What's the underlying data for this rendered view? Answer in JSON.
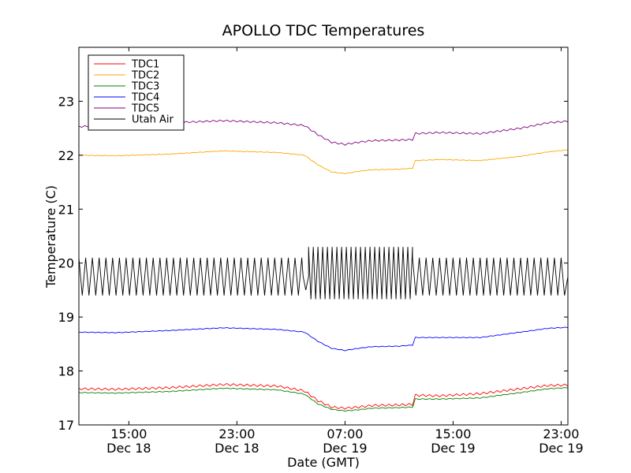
{
  "chart_data": {
    "type": "line",
    "title": "APOLLO TDC Temperatures",
    "xlabel": "Date (GMT)",
    "ylabel": "Temperature (C)",
    "x_unit": "hours since 2023-12-18 00:00 GMT",
    "xlim": [
      11.3,
      47.5
    ],
    "ylim": [
      17,
      24
    ],
    "grid": false,
    "legend_position": "top-left",
    "x_ticks": [
      {
        "value": 15,
        "line1": "15:00",
        "line2": "Dec 18"
      },
      {
        "value": 23,
        "line1": "23:00",
        "line2": "Dec 18"
      },
      {
        "value": 31,
        "line1": "07:00",
        "line2": "Dec 19"
      },
      {
        "value": 39,
        "line1": "15:00",
        "line2": "Dec 19"
      },
      {
        "value": 47,
        "line1": "23:00",
        "line2": "Dec 19"
      }
    ],
    "y_ticks": [
      17,
      18,
      19,
      20,
      21,
      22,
      23
    ],
    "series": [
      {
        "name": "TDC1",
        "color": "#ff0000",
        "ripple": 0.04,
        "x": [
          11.3,
          14,
          18,
          22,
          26,
          28,
          29,
          30,
          31,
          32,
          33,
          35,
          36,
          36.2,
          38,
          41,
          44,
          46,
          47.5
        ],
        "y": [
          17.67,
          17.66,
          17.69,
          17.75,
          17.72,
          17.63,
          17.45,
          17.33,
          17.31,
          17.33,
          17.36,
          17.37,
          17.38,
          17.55,
          17.54,
          17.58,
          17.67,
          17.73,
          17.74
        ]
      },
      {
        "name": "TDC2",
        "color": "#ffa500",
        "ripple": 0.01,
        "x": [
          11.3,
          14,
          18,
          22,
          26,
          28,
          29,
          30,
          31,
          32,
          33,
          35,
          36,
          36.2,
          38,
          41,
          44,
          46,
          47.5
        ],
        "y": [
          22.0,
          21.99,
          22.02,
          22.08,
          22.05,
          22.0,
          21.82,
          21.69,
          21.66,
          21.7,
          21.73,
          21.74,
          21.76,
          21.9,
          21.92,
          21.9,
          21.98,
          22.06,
          22.1
        ]
      },
      {
        "name": "TDC3",
        "color": "#008000",
        "ripple": 0.015,
        "x": [
          11.3,
          14,
          18,
          22,
          26,
          28,
          29,
          30,
          31,
          32,
          33,
          35,
          36,
          36.2,
          38,
          41,
          44,
          46,
          47.5
        ],
        "y": [
          17.6,
          17.59,
          17.62,
          17.68,
          17.65,
          17.57,
          17.39,
          17.29,
          17.26,
          17.28,
          17.31,
          17.32,
          17.33,
          17.48,
          17.48,
          17.5,
          17.6,
          17.67,
          17.69
        ]
      },
      {
        "name": "TDC4",
        "color": "#0000ff",
        "ripple": 0.012,
        "x": [
          11.3,
          14,
          18,
          22,
          26,
          28,
          29,
          30,
          31,
          32,
          33,
          35,
          36,
          36.2,
          38,
          41,
          44,
          46,
          47.5
        ],
        "y": [
          18.72,
          18.71,
          18.75,
          18.8,
          18.77,
          18.72,
          18.55,
          18.42,
          18.38,
          18.42,
          18.45,
          18.46,
          18.48,
          18.62,
          18.62,
          18.62,
          18.72,
          18.79,
          18.81
        ]
      },
      {
        "name": "TDC5",
        "color": "#800080",
        "ripple": 0.03,
        "x": [
          11.3,
          14,
          18,
          22,
          26,
          28,
          29,
          30,
          31,
          32,
          33,
          35,
          36,
          36.2,
          38,
          41,
          44,
          46,
          47.5
        ],
        "y": [
          22.53,
          22.55,
          22.6,
          22.64,
          22.6,
          22.55,
          22.38,
          22.24,
          22.2,
          22.24,
          22.27,
          22.28,
          22.29,
          22.4,
          22.42,
          22.4,
          22.5,
          22.6,
          22.63
        ]
      },
      {
        "name": "Utah Air",
        "color": "#000000",
        "oscillation": true,
        "segments": [
          {
            "x_start": 11.3,
            "x_end": 27.9,
            "period": 0.5,
            "low": 19.4,
            "high": 20.1
          },
          {
            "x_start": 27.9,
            "x_end": 28.3,
            "period": 0.4,
            "low": 19.5,
            "high": 19.75
          },
          {
            "x_start": 28.3,
            "x_end": 36.0,
            "period": 0.35,
            "low": 19.33,
            "high": 20.3
          },
          {
            "x_start": 36.0,
            "x_end": 47.5,
            "period": 0.5,
            "low": 19.4,
            "high": 20.1
          }
        ]
      }
    ]
  }
}
